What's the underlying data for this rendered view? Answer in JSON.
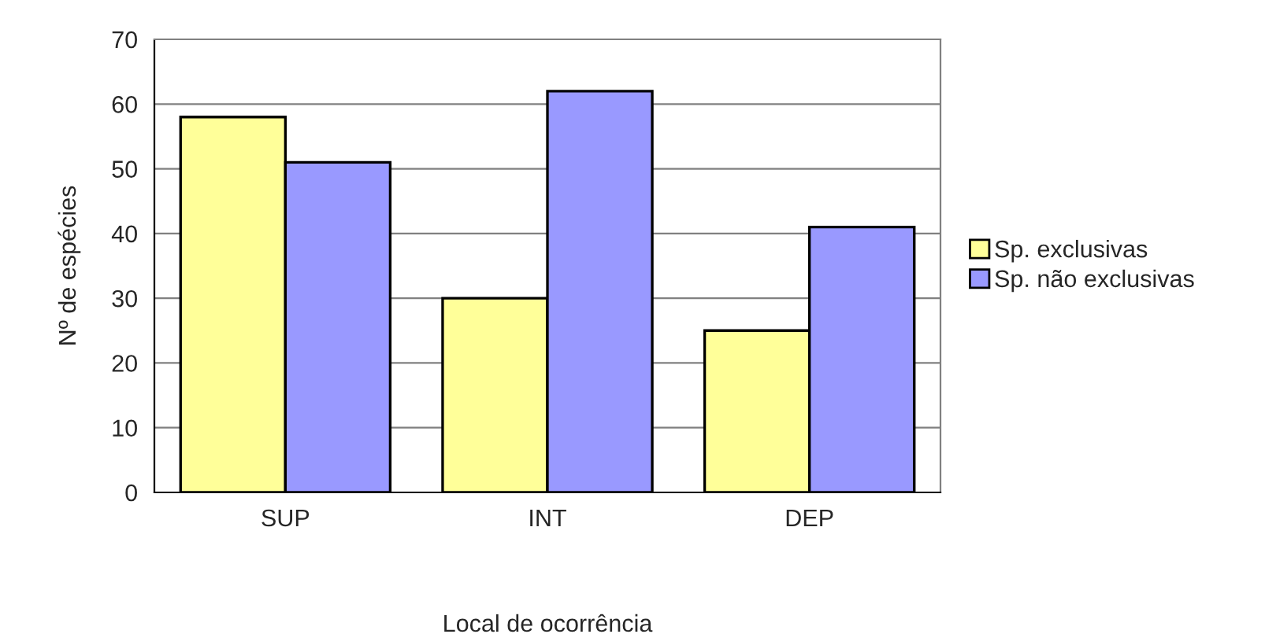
{
  "chart_data": {
    "type": "bar",
    "xlabel": "Local de ocorrência",
    "ylabel": "Nº de espécies",
    "categories": [
      "SUP",
      "INT",
      "DEP"
    ],
    "series": [
      {
        "name": "Sp. exclusivas",
        "color": "#ffff99",
        "values": [
          58,
          30,
          25
        ]
      },
      {
        "name": "Sp. não exclusivas",
        "color": "#9999ff",
        "values": [
          51,
          62,
          41
        ]
      }
    ],
    "ylim": [
      0,
      70
    ],
    "yticks": [
      0,
      10,
      20,
      30,
      40,
      50,
      60,
      70
    ],
    "grid": "y",
    "legend": "right"
  }
}
